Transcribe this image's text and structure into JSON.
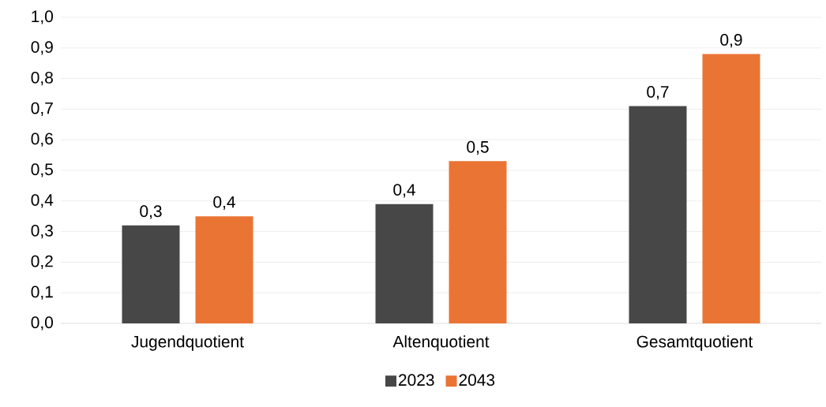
{
  "chart_data": {
    "type": "bar",
    "categories": [
      "Jugendquotient",
      "Altenquotient",
      "Gesamtquotient"
    ],
    "series": [
      {
        "name": "2023",
        "color": "#474747",
        "values": [
          0.32,
          0.39,
          0.71
        ],
        "value_labels": [
          "0,3",
          "0,4",
          "0,7"
        ]
      },
      {
        "name": "2043",
        "color": "#ea7434",
        "values": [
          0.35,
          0.53,
          0.88
        ],
        "value_labels": [
          "0,4",
          "0,5",
          "0,9"
        ]
      }
    ],
    "ylim": [
      0,
      1.0
    ],
    "yticks": [
      {
        "value": 0,
        "label": "0,0"
      },
      {
        "value": 0.1,
        "label": "0,1"
      },
      {
        "value": 0.2,
        "label": "0,2"
      },
      {
        "value": 0.3,
        "label": "0,3"
      },
      {
        "value": 0.4,
        "label": "0,4"
      },
      {
        "value": 0.5,
        "label": "0,5"
      },
      {
        "value": 0.6,
        "label": "0,6"
      },
      {
        "value": 0.7,
        "label": "0,7"
      },
      {
        "value": 0.8,
        "label": "0,8"
      },
      {
        "value": 0.9,
        "label": "0,9"
      },
      {
        "value": 1.0,
        "label": "1,0"
      }
    ],
    "grid": "y",
    "legend": "bottom"
  }
}
